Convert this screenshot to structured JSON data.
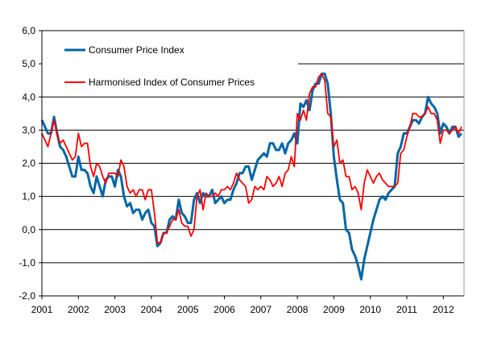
{
  "chart_data": {
    "type": "line",
    "title": "",
    "xlabel": "",
    "ylabel": "",
    "ylim": [
      -2.0,
      6.0
    ],
    "yticks": [
      "-2,0",
      "-1,0",
      "0,0",
      "1,0",
      "2,0",
      "3,0",
      "4,0",
      "5,0",
      "6,0"
    ],
    "xticks": [
      "2001",
      "2002",
      "2003",
      "2004",
      "2005",
      "2006",
      "2007",
      "2008",
      "2009",
      "2010",
      "2011",
      "2012"
    ],
    "x_start": "2001-01",
    "x_frequency": "monthly",
    "grid": "horizontal",
    "legend_placement": "top-left",
    "series": [
      {
        "name": "Consumer Price Index",
        "color": "#0066a6",
        "values": [
          3.3,
          3.1,
          2.9,
          2.9,
          3.4,
          2.9,
          2.5,
          2.4,
          2.2,
          1.9,
          1.6,
          1.6,
          2.2,
          1.8,
          1.8,
          1.7,
          1.3,
          1.1,
          1.6,
          1.3,
          1.0,
          1.5,
          1.6,
          1.6,
          1.3,
          1.8,
          1.6,
          1.0,
          0.7,
          0.8,
          0.5,
          0.6,
          0.6,
          0.3,
          0.5,
          0.6,
          0.2,
          0.1,
          -0.5,
          -0.4,
          -0.1,
          -0.1,
          0.3,
          0.4,
          0.3,
          0.9,
          0.5,
          0.4,
          0.2,
          0.2,
          0.9,
          1.1,
          0.8,
          1.1,
          1.0,
          1.0,
          1.2,
          0.8,
          0.9,
          1.0,
          0.8,
          0.9,
          0.9,
          1.2,
          1.4,
          1.7,
          1.7,
          1.9,
          1.9,
          1.5,
          1.8,
          2.1,
          2.2,
          2.3,
          2.2,
          2.6,
          2.6,
          2.4,
          2.4,
          2.6,
          2.3,
          2.6,
          2.7,
          2.9,
          2.6,
          3.8,
          3.7,
          3.9,
          3.6,
          4.2,
          4.4,
          4.4,
          4.7,
          4.7,
          4.4,
          3.5,
          2.2,
          1.5,
          0.9,
          0.8,
          0.0,
          -0.1,
          -0.6,
          -0.8,
          -1.1,
          -1.5,
          -0.9,
          -0.5,
          -0.1,
          0.3,
          0.6,
          0.9,
          1.0,
          0.9,
          1.1,
          1.2,
          1.3,
          2.3,
          2.5,
          2.9,
          2.9,
          3.1,
          3.3,
          3.3,
          3.2,
          3.4,
          3.5,
          4.0,
          3.8,
          3.7,
          3.5,
          2.9,
          3.2,
          3.1,
          2.9,
          3.1,
          3.1,
          2.8,
          2.9
        ]
      },
      {
        "name": "Harmonised Index of Consumer Prices",
        "color": "#ff0000",
        "values": [
          2.9,
          2.7,
          2.5,
          2.9,
          3.3,
          2.9,
          2.6,
          2.7,
          2.5,
          2.3,
          2.1,
          2.2,
          2.9,
          2.5,
          2.6,
          2.6,
          1.9,
          1.6,
          2.0,
          1.9,
          1.6,
          1.4,
          1.7,
          1.7,
          1.7,
          1.6,
          2.1,
          1.9,
          1.3,
          1.1,
          1.2,
          1.0,
          1.2,
          1.2,
          0.9,
          1.2,
          1.2,
          0.5,
          -0.4,
          -0.4,
          -0.1,
          -0.1,
          0.1,
          0.3,
          0.3,
          0.6,
          0.2,
          0.1,
          0.1,
          -0.2,
          0.0,
          1.0,
          1.2,
          0.6,
          1.1,
          1.0,
          1.0,
          1.1,
          1.0,
          1.2,
          1.2,
          1.3,
          1.2,
          1.4,
          1.7,
          1.5,
          1.4,
          1.3,
          0.8,
          0.9,
          1.3,
          1.2,
          1.3,
          1.2,
          1.6,
          1.5,
          1.3,
          1.4,
          1.6,
          1.3,
          1.7,
          1.8,
          2.2,
          1.9,
          3.5,
          3.3,
          3.6,
          3.3,
          4.1,
          4.3,
          4.3,
          4.6,
          4.7,
          4.5,
          3.5,
          3.4,
          2.5,
          2.7,
          2.0,
          2.1,
          1.6,
          1.6,
          1.2,
          1.3,
          1.1,
          0.6,
          1.4,
          1.8,
          1.6,
          1.4,
          1.6,
          1.7,
          1.5,
          1.4,
          1.3,
          1.3,
          1.3,
          1.4,
          2.3,
          2.4,
          2.8,
          3.1,
          3.5,
          3.5,
          3.4,
          3.4,
          3.5,
          3.7,
          3.5,
          3.5,
          3.3,
          2.6,
          3.0,
          3.0,
          2.9,
          3.0,
          3.1,
          2.9,
          3.1
        ]
      }
    ]
  }
}
